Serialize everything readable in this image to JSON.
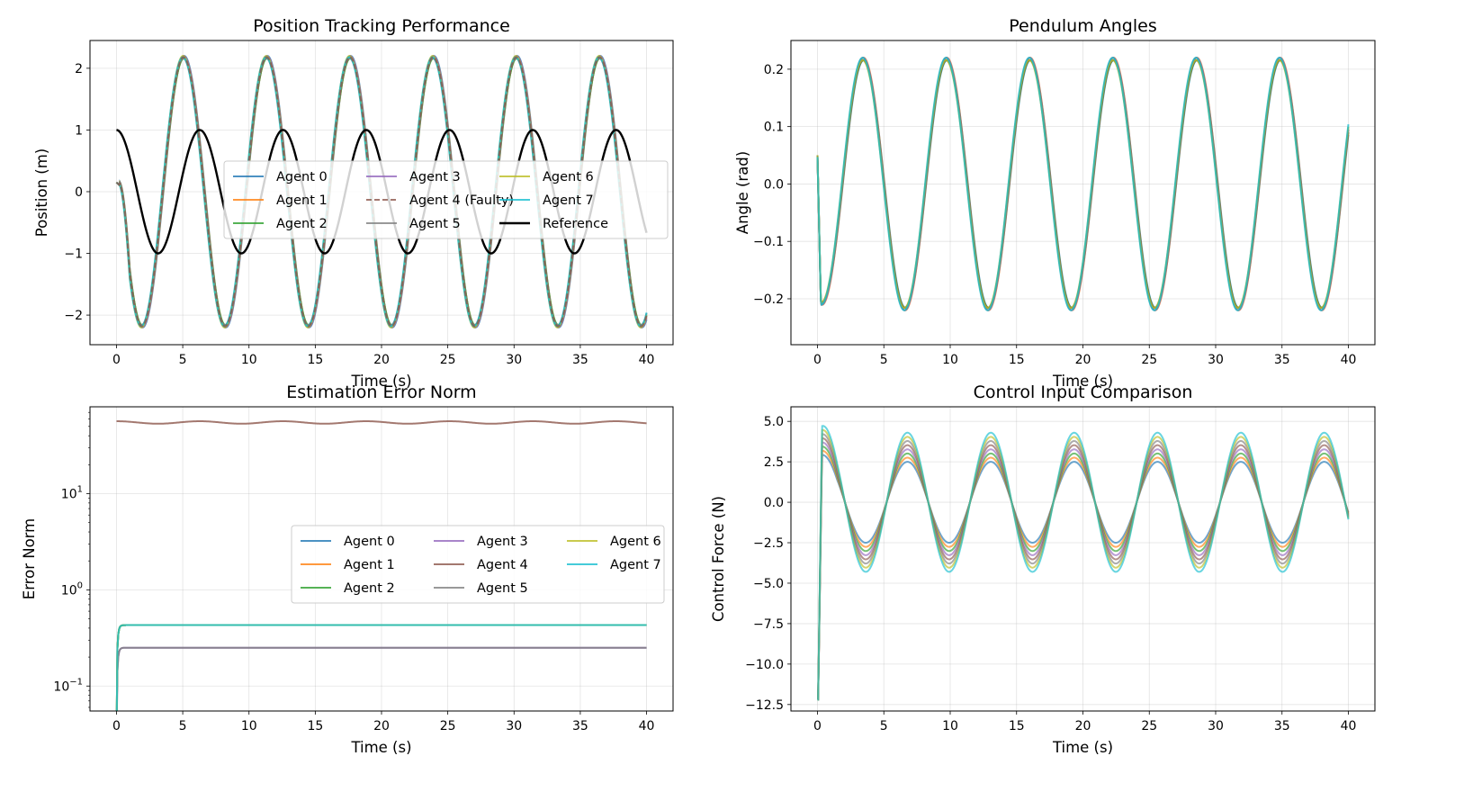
{
  "colors": [
    "#1f77b4",
    "#ff7f0e",
    "#2ca02c",
    "#9467bd",
    "#8c564b",
    "#7f7f7f",
    "#bcbd22",
    "#17becf"
  ],
  "chart_data": [
    {
      "type": "line",
      "title": "Position Tracking Performance",
      "xlabel": "Time (s)",
      "ylabel": "Position (m)",
      "xlim": [
        -2,
        42
      ],
      "ylim": [
        -2.48,
        2.45
      ],
      "xticks": [
        0,
        5,
        10,
        15,
        20,
        25,
        30,
        35,
        40
      ],
      "yticks": [
        -2,
        -1,
        0,
        1,
        2
      ],
      "ytick_labels": [
        "−2",
        "−1",
        "0",
        "1",
        "2"
      ],
      "grid": true,
      "legend_position": "center-right",
      "legend_columns": 3,
      "curve": {
        "kind": "oscillation",
        "amplitude": 2.2,
        "frequency": 1.0,
        "offset": 0.15,
        "x_end": 40
      },
      "reference": {
        "name": "Reference",
        "kind": "cos",
        "amplitude": 1.0,
        "frequency": 1.0,
        "x_end": 40
      },
      "series": [
        {
          "name": "Agent 0",
          "style": "solid"
        },
        {
          "name": "Agent 1",
          "style": "solid"
        },
        {
          "name": "Agent 2",
          "style": "solid"
        },
        {
          "name": "Agent 3",
          "style": "solid"
        },
        {
          "name": "Agent 4 (Faulty)",
          "style": "dashed"
        },
        {
          "name": "Agent 5",
          "style": "solid"
        },
        {
          "name": "Agent 6",
          "style": "solid"
        },
        {
          "name": "Agent 7",
          "style": "solid"
        },
        {
          "name": "Reference",
          "style": "solid",
          "color": "#000000"
        }
      ]
    },
    {
      "type": "line",
      "title": "Pendulum Angles",
      "xlabel": "Time (s)",
      "ylabel": "Angle (rad)",
      "xlim": [
        -2,
        42
      ],
      "ylim": [
        -0.28,
        0.25
      ],
      "xticks": [
        0,
        5,
        10,
        15,
        20,
        25,
        30,
        35,
        40
      ],
      "yticks": [
        -0.2,
        -0.1,
        0.0,
        0.1,
        0.2
      ],
      "ytick_labels": [
        "−0.2",
        "−0.1",
        "0.0",
        "0.1",
        "0.2"
      ],
      "grid": true,
      "curve": {
        "kind": "oscillation",
        "amplitude": 0.22,
        "frequency": 1.0,
        "start": 0.05,
        "dip": -0.25,
        "x_end": 40
      },
      "series": [
        {
          "name": "Agent 0"
        },
        {
          "name": "Agent 1"
        },
        {
          "name": "Agent 2"
        },
        {
          "name": "Agent 3"
        },
        {
          "name": "Agent 4"
        },
        {
          "name": "Agent 5"
        },
        {
          "name": "Agent 6"
        },
        {
          "name": "Agent 7"
        }
      ]
    },
    {
      "type": "line",
      "title": "Estimation Error Norm",
      "xlabel": "Time (s)",
      "ylabel": "Error Norm",
      "yscale": "log",
      "xlim": [
        -2,
        42
      ],
      "ylim": [
        0.055,
        80
      ],
      "xticks": [
        0,
        5,
        10,
        15,
        20,
        25,
        30,
        35,
        40
      ],
      "yticks": [
        0.1,
        1,
        10
      ],
      "ytick_labels": [
        {
          "base": "10",
          "exp": "−1"
        },
        {
          "base": "10",
          "exp": "0"
        },
        {
          "base": "10",
          "exp": "1"
        }
      ],
      "grid": true,
      "legend_position": "center-right",
      "legend_columns": 3,
      "levels": {
        "faulty_agent_4": 55,
        "upper_group": 0.43,
        "lower_group": 0.25
      },
      "series": [
        {
          "name": "Agent 0"
        },
        {
          "name": "Agent 1"
        },
        {
          "name": "Agent 2"
        },
        {
          "name": "Agent 3"
        },
        {
          "name": "Agent 4"
        },
        {
          "name": "Agent 5"
        },
        {
          "name": "Agent 6"
        },
        {
          "name": "Agent 7"
        }
      ]
    },
    {
      "type": "line",
      "title": "Control Input Comparison",
      "xlabel": "Time (s)",
      "ylabel": "Control Force (N)",
      "xlim": [
        -2,
        42
      ],
      "ylim": [
        -12.9,
        5.9
      ],
      "xticks": [
        0,
        5,
        10,
        15,
        20,
        25,
        30,
        35,
        40
      ],
      "yticks": [
        -12.5,
        -10.0,
        -7.5,
        -5.0,
        -2.5,
        0.0,
        2.5,
        5.0
      ],
      "ytick_labels": [
        "−12.5",
        "−10.0",
        "−7.5",
        "−5.0",
        "−2.5",
        "0.0",
        "2.5",
        "5.0"
      ],
      "grid": true,
      "curve": {
        "kind": "oscillation",
        "min_amplitude": 2.5,
        "max_amplitude": 4.3,
        "min_initial": -12.2,
        "peak_initial": 5.2,
        "frequency": 1.0,
        "x_end": 40
      },
      "series": [
        {
          "name": "Agent 0"
        },
        {
          "name": "Agent 1"
        },
        {
          "name": "Agent 2"
        },
        {
          "name": "Agent 3"
        },
        {
          "name": "Agent 4"
        },
        {
          "name": "Agent 5"
        },
        {
          "name": "Agent 6"
        },
        {
          "name": "Agent 7"
        }
      ]
    }
  ]
}
